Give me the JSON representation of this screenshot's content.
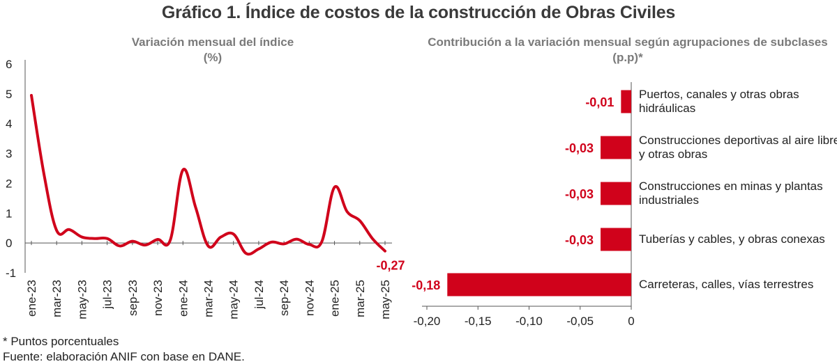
{
  "title": "Gráfico 1. Índice de costos de la construcción de Obras Civiles",
  "colors": {
    "accent": "#d0021b",
    "axis": "#555555",
    "subtitle": "#7a7a7a"
  },
  "chart_data": [
    {
      "type": "line",
      "title": "Variación mensual del índice",
      "subtitle": "(%)",
      "ylim": [
        -1,
        6
      ],
      "yticks": [
        "6",
        "5",
        "4",
        "3",
        "2",
        "1",
        "0",
        "-1"
      ],
      "xticks": [
        "ene-23",
        "mar-23",
        "may-23",
        "jul-23",
        "sep-23",
        "nov-23",
        "ene-24",
        "mar-24",
        "may-24",
        "jul-24",
        "sep-24",
        "nov-24",
        "ene-25",
        "mar-25",
        "may-25"
      ],
      "categories": [
        "ene-23",
        "feb-23",
        "mar-23",
        "abr-23",
        "may-23",
        "jun-23",
        "jul-23",
        "ago-23",
        "sep-23",
        "oct-23",
        "nov-23",
        "dic-23",
        "ene-24",
        "feb-24",
        "mar-24",
        "abr-24",
        "may-24",
        "jun-24",
        "jul-24",
        "ago-24",
        "sep-24",
        "oct-24",
        "nov-24",
        "dic-24",
        "ene-25",
        "feb-25",
        "mar-25",
        "abr-25",
        "may-25"
      ],
      "values": [
        4.95,
        2.3,
        0.42,
        0.45,
        0.2,
        0.15,
        0.15,
        -0.1,
        0.06,
        -0.07,
        0.12,
        0.1,
        2.45,
        1.2,
        -0.1,
        0.2,
        0.3,
        -0.35,
        -0.2,
        0.03,
        -0.03,
        0.13,
        -0.05,
        0.05,
        1.87,
        1.05,
        0.75,
        0.15,
        -0.27
      ],
      "last_label": "-0,27",
      "grid": false
    },
    {
      "type": "bar",
      "orientation": "horizontal",
      "title": "Contribución a la variación mensual según agrupaciones de subclases (p.p)*",
      "categories": [
        "Puertos, canales y otras obras hidráulicas",
        "Construcciones deportivas al aire libre y otras obras",
        "Construcciones  en minas y plantas industriales",
        "Tuberías y cables, y obras conexas",
        "Carreteras, calles, vías terrestres"
      ],
      "values": [
        -0.01,
        -0.03,
        -0.03,
        -0.03,
        -0.18
      ],
      "value_labels": [
        "-0,01",
        "-0,03",
        "-0,03",
        "-0,03",
        "-0,18"
      ],
      "xlim": [
        -0.2,
        0
      ],
      "xticks": [
        "-0,20",
        "-0,15",
        "-0,10",
        "-0,05",
        "0"
      ],
      "grid": false
    }
  ],
  "footnotes": [
    "* Puntos porcentuales",
    "Fuente: elaboración ANIF con base en DANE."
  ]
}
